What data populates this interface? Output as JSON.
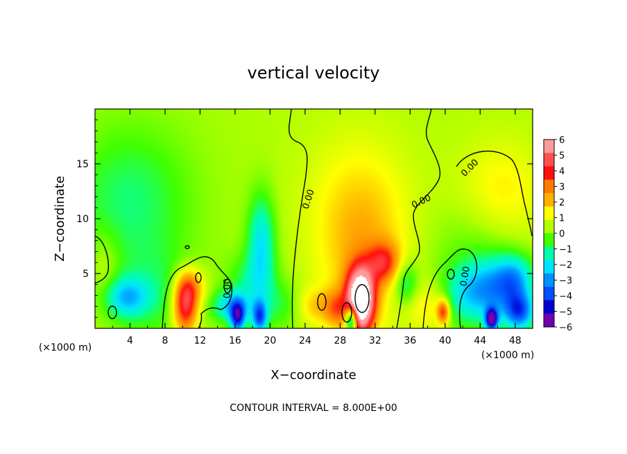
{
  "chart_data": {
    "type": "heatmap",
    "title": "vertical velocity",
    "xlabel": "X−coordinate",
    "ylabel": "Z−coordinate",
    "x_unit": "(×1000 m)",
    "x_unit_right": "(×1000 m)",
    "xlim": [
      0,
      50
    ],
    "ylim": [
      0,
      20
    ],
    "x_ticks": [
      4,
      8,
      12,
      16,
      20,
      24,
      28,
      32,
      36,
      40,
      44,
      48
    ],
    "y_ticks": [
      5,
      10,
      15
    ],
    "colorbar": {
      "min": -6,
      "max": 6,
      "ticks": [
        6,
        5,
        4,
        3,
        2,
        1,
        0,
        -1,
        -2,
        -3,
        -4,
        -5,
        -6
      ],
      "colors": [
        "#ff9a9a",
        "#ff5050",
        "#ff1010",
        "#ff7a00",
        "#ffb000",
        "#ffff00",
        "#b4ff00",
        "#40ff00",
        "#00ffaa",
        "#00e5ff",
        "#0090ff",
        "#0050ff",
        "#0000d0",
        "#7000b0"
      ]
    },
    "background_value": 0.4,
    "features": [
      {
        "x": 30.3,
        "z": 2.5,
        "sx": 1.1,
        "sz": 2.0,
        "v": 9.0
      },
      {
        "x": 30.5,
        "z": 6.5,
        "sx": 3.5,
        "sz": 5.0,
        "v": 1.4
      },
      {
        "x": 30.0,
        "z": 11.5,
        "sx": 4.5,
        "sz": 5.0,
        "v": 0.9
      },
      {
        "x": 33.0,
        "z": 6.0,
        "sx": 1.3,
        "sz": 1.3,
        "v": 2.8
      },
      {
        "x": 27.5,
        "z": 1.8,
        "sx": 0.9,
        "sz": 1.2,
        "v": 2.0
      },
      {
        "x": 29.3,
        "z": 0.8,
        "sx": 0.5,
        "sz": 0.9,
        "v": -6.0
      },
      {
        "x": 10.3,
        "z": 2.0,
        "sx": 1.0,
        "sz": 1.8,
        "v": 4.5
      },
      {
        "x": 11.0,
        "z": 3.8,
        "sx": 1.2,
        "sz": 1.2,
        "v": 2.0
      },
      {
        "x": 7.0,
        "z": 3.0,
        "sx": 3.0,
        "sz": 3.0,
        "v": -1.0
      },
      {
        "x": 3.5,
        "z": 2.8,
        "sx": 1.8,
        "sz": 1.3,
        "v": -2.6
      },
      {
        "x": 1.2,
        "z": 5.5,
        "sx": 1.2,
        "sz": 2.5,
        "v": 0.8
      },
      {
        "x": 4.0,
        "z": 11.5,
        "sx": 5.0,
        "sz": 5.0,
        "v": -1.5
      },
      {
        "x": 15.5,
        "z": 2.0,
        "sx": 1.5,
        "sz": 1.0,
        "v": -2.5
      },
      {
        "x": 16.3,
        "z": 1.0,
        "sx": 0.6,
        "sz": 1.0,
        "v": -4.5
      },
      {
        "x": 18.8,
        "z": 1.0,
        "sx": 0.6,
        "sz": 1.0,
        "v": -4.0
      },
      {
        "x": 19.0,
        "z": 8.0,
        "sx": 1.1,
        "sz": 3.0,
        "v": -2.5
      },
      {
        "x": 18.0,
        "z": 4.0,
        "sx": 2.0,
        "sz": 2.0,
        "v": -1.5
      },
      {
        "x": 21.5,
        "z": 2.0,
        "sx": 2.0,
        "sz": 1.5,
        "v": -1.0
      },
      {
        "x": 25.0,
        "z": 2.0,
        "sx": 1.5,
        "sz": 1.2,
        "v": 1.5
      },
      {
        "x": 35.5,
        "z": 4.0,
        "sx": 1.0,
        "sz": 1.5,
        "v": -2.0
      },
      {
        "x": 38.0,
        "z": 2.0,
        "sx": 1.8,
        "sz": 1.5,
        "v": 1.2
      },
      {
        "x": 39.8,
        "z": 1.5,
        "sx": 0.5,
        "sz": 0.8,
        "v": 3.5
      },
      {
        "x": 42.0,
        "z": 3.0,
        "sx": 2.0,
        "sz": 2.0,
        "v": -1.8
      },
      {
        "x": 45.5,
        "z": 3.5,
        "sx": 2.2,
        "sz": 2.0,
        "v": -3.0
      },
      {
        "x": 45.3,
        "z": 0.8,
        "sx": 0.5,
        "sz": 0.7,
        "v": -6.0
      },
      {
        "x": 48.5,
        "z": 1.5,
        "sx": 1.2,
        "sz": 1.2,
        "v": -4.0
      },
      {
        "x": 48.0,
        "z": 4.5,
        "sx": 1.5,
        "sz": 1.5,
        "v": -2.5
      },
      {
        "x": 46.5,
        "z": 12.0,
        "sx": 3.5,
        "sz": 3.5,
        "v": 1.3
      },
      {
        "x": 44.0,
        "z": 8.0,
        "sx": 4.0,
        "sz": 3.0,
        "v": -0.8
      }
    ],
    "contour_labels": [
      "0.00",
      "0.00",
      "0.00",
      "0.00",
      "0.00"
    ]
  },
  "footer": {
    "contour_interval": "CONTOUR INTERVAL = 8.000E+00"
  }
}
